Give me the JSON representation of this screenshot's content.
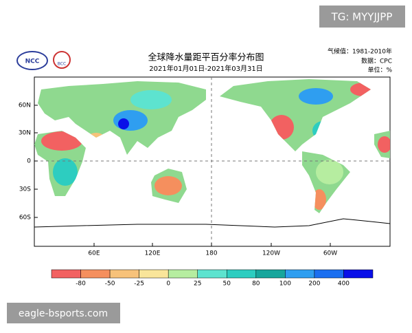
{
  "watermark_top": "TG: MYYJJPP",
  "watermark_bottom": "eagle-bsports.com",
  "logos": [
    "NCC",
    "BCC"
  ],
  "header": {
    "title": "全球降水量距平百分率分布图",
    "subtitle": "2021年01月01日-2021年03月31日",
    "info": [
      "气候值：1981-2010年",
      "数据：CPC",
      "单位：%"
    ]
  },
  "map": {
    "lat_labels": [
      "60N",
      "30N",
      "0",
      "30S",
      "60S"
    ],
    "lon_labels": [
      "60E",
      "120E",
      "180",
      "120W",
      "60W"
    ]
  },
  "colorbar": {
    "labels": [
      "-80",
      "-50",
      "-25",
      "0",
      "25",
      "50",
      "80",
      "100",
      "200",
      "400"
    ],
    "colors": [
      "#f26161",
      "#f58f5e",
      "#f7c27a",
      "#f9e59a",
      "#b6eda0",
      "#5de3cf",
      "#2dcdc0",
      "#17a69c",
      "#2f9ef0",
      "#1b6ff0",
      "#0a10e8"
    ]
  }
}
